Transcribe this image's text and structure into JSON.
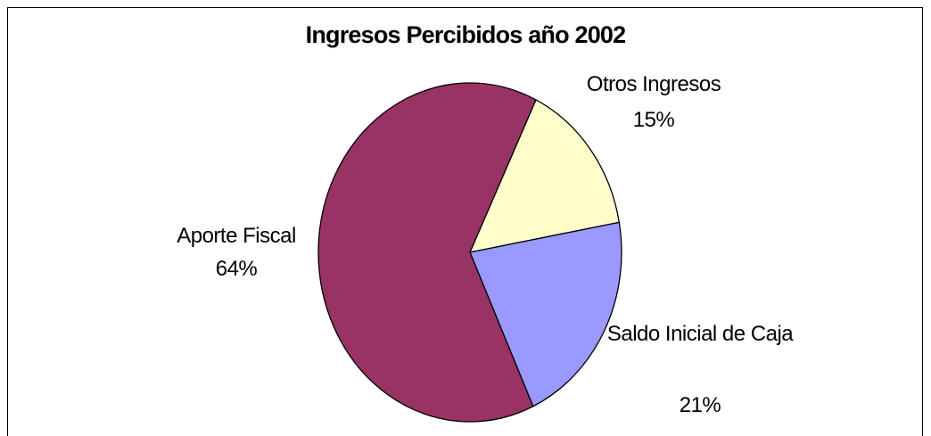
{
  "chart_data": {
    "type": "pie",
    "title": "Ingresos Percibidos año 2002",
    "categories": [
      "Otros Ingresos",
      "Saldo Inicial de Caja",
      "Aporte Fiscal"
    ],
    "values": [
      15,
      21,
      64
    ],
    "value_labels": [
      "15%",
      "21%",
      "64%"
    ],
    "colors": [
      "#FFFFCC",
      "#9999FF",
      "#993366"
    ]
  }
}
